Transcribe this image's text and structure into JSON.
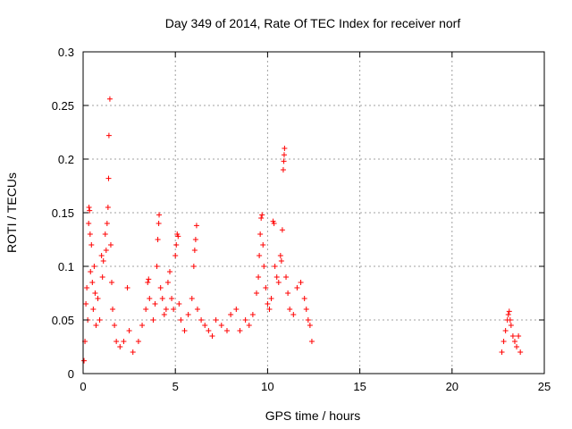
{
  "chart_data": {
    "type": "scatter",
    "title": "Day 349 of 2014, Rate Of TEC Index for receiver norf",
    "xlabel": "GPS time / hours",
    "ylabel": "ROTI / TECUs",
    "xlim": [
      0,
      25
    ],
    "ylim": [
      0,
      0.3
    ],
    "xticks": [
      0,
      5,
      10,
      15,
      20,
      25
    ],
    "xtick_labels": [
      "0",
      "5",
      "10",
      "15",
      "20",
      "25"
    ],
    "yticks": [
      0,
      0.05,
      0.1,
      0.15,
      0.2,
      0.25,
      0.3
    ],
    "ytick_labels": [
      "0",
      "0.05",
      "0.1",
      "0.15",
      "0.2",
      "0.25",
      "0.3"
    ],
    "grid": true,
    "marker": "+",
    "color": "#ff0000",
    "series": [
      {
        "name": "ROTI",
        "points": [
          [
            0.05,
            0.012
          ],
          [
            0.1,
            0.03
          ],
          [
            0.15,
            0.065
          ],
          [
            0.2,
            0.08
          ],
          [
            0.25,
            0.05
          ],
          [
            0.3,
            0.14
          ],
          [
            0.32,
            0.155
          ],
          [
            0.35,
            0.152
          ],
          [
            0.38,
            0.13
          ],
          [
            0.4,
            0.095
          ],
          [
            0.45,
            0.12
          ],
          [
            0.5,
            0.085
          ],
          [
            0.55,
            0.06
          ],
          [
            0.6,
            0.1
          ],
          [
            0.65,
            0.075
          ],
          [
            0.7,
            0.045
          ],
          [
            0.8,
            0.07
          ],
          [
            0.9,
            0.05
          ],
          [
            1.0,
            0.11
          ],
          [
            1.05,
            0.09
          ],
          [
            1.1,
            0.105
          ],
          [
            1.2,
            0.13
          ],
          [
            1.25,
            0.115
          ],
          [
            1.3,
            0.14
          ],
          [
            1.35,
            0.155
          ],
          [
            1.38,
            0.182
          ],
          [
            1.4,
            0.222
          ],
          [
            1.45,
            0.256
          ],
          [
            1.5,
            0.12
          ],
          [
            1.55,
            0.085
          ],
          [
            1.6,
            0.06
          ],
          [
            1.7,
            0.045
          ],
          [
            1.8,
            0.03
          ],
          [
            2.0,
            0.025
          ],
          [
            2.2,
            0.03
          ],
          [
            2.4,
            0.08
          ],
          [
            2.5,
            0.04
          ],
          [
            2.7,
            0.02
          ],
          [
            3.0,
            0.03
          ],
          [
            3.2,
            0.045
          ],
          [
            3.4,
            0.06
          ],
          [
            3.5,
            0.085
          ],
          [
            3.55,
            0.088
          ],
          [
            3.6,
            0.07
          ],
          [
            3.8,
            0.05
          ],
          [
            3.9,
            0.065
          ],
          [
            4.0,
            0.1
          ],
          [
            4.05,
            0.125
          ],
          [
            4.1,
            0.14
          ],
          [
            4.12,
            0.148
          ],
          [
            4.2,
            0.08
          ],
          [
            4.3,
            0.07
          ],
          [
            4.4,
            0.055
          ],
          [
            4.5,
            0.06
          ],
          [
            4.6,
            0.085
          ],
          [
            4.7,
            0.095
          ],
          [
            4.8,
            0.07
          ],
          [
            4.9,
            0.06
          ],
          [
            5.0,
            0.11
          ],
          [
            5.05,
            0.12
          ],
          [
            5.1,
            0.13
          ],
          [
            5.15,
            0.128
          ],
          [
            5.2,
            0.065
          ],
          [
            5.3,
            0.05
          ],
          [
            5.5,
            0.04
          ],
          [
            5.7,
            0.055
          ],
          [
            5.9,
            0.07
          ],
          [
            6.0,
            0.1
          ],
          [
            6.05,
            0.115
          ],
          [
            6.1,
            0.125
          ],
          [
            6.15,
            0.138
          ],
          [
            6.2,
            0.06
          ],
          [
            6.4,
            0.05
          ],
          [
            6.6,
            0.045
          ],
          [
            6.8,
            0.04
          ],
          [
            7.0,
            0.035
          ],
          [
            7.2,
            0.05
          ],
          [
            7.5,
            0.045
          ],
          [
            7.8,
            0.04
          ],
          [
            8.0,
            0.055
          ],
          [
            8.3,
            0.06
          ],
          [
            8.5,
            0.04
          ],
          [
            8.8,
            0.05
          ],
          [
            9.0,
            0.045
          ],
          [
            9.2,
            0.055
          ],
          [
            9.4,
            0.075
          ],
          [
            9.5,
            0.09
          ],
          [
            9.55,
            0.11
          ],
          [
            9.6,
            0.13
          ],
          [
            9.65,
            0.145
          ],
          [
            9.7,
            0.148
          ],
          [
            9.75,
            0.12
          ],
          [
            9.8,
            0.1
          ],
          [
            9.9,
            0.08
          ],
          [
            10.0,
            0.065
          ],
          [
            10.1,
            0.06
          ],
          [
            10.2,
            0.07
          ],
          [
            10.3,
            0.142
          ],
          [
            10.35,
            0.14
          ],
          [
            10.4,
            0.1
          ],
          [
            10.5,
            0.09
          ],
          [
            10.6,
            0.085
          ],
          [
            10.7,
            0.11
          ],
          [
            10.75,
            0.105
          ],
          [
            10.8,
            0.134
          ],
          [
            10.85,
            0.19
          ],
          [
            10.88,
            0.198
          ],
          [
            10.9,
            0.204
          ],
          [
            10.92,
            0.21
          ],
          [
            11.0,
            0.09
          ],
          [
            11.1,
            0.075
          ],
          [
            11.2,
            0.06
          ],
          [
            11.4,
            0.055
          ],
          [
            11.6,
            0.08
          ],
          [
            11.8,
            0.085
          ],
          [
            12.0,
            0.07
          ],
          [
            12.1,
            0.06
          ],
          [
            12.2,
            0.05
          ],
          [
            12.3,
            0.045
          ],
          [
            12.4,
            0.03
          ],
          [
            22.7,
            0.02
          ],
          [
            22.8,
            0.03
          ],
          [
            22.9,
            0.04
          ],
          [
            23.0,
            0.05
          ],
          [
            23.05,
            0.055
          ],
          [
            23.1,
            0.058
          ],
          [
            23.15,
            0.05
          ],
          [
            23.2,
            0.045
          ],
          [
            23.3,
            0.035
          ],
          [
            23.4,
            0.03
          ],
          [
            23.5,
            0.025
          ],
          [
            23.6,
            0.035
          ],
          [
            23.7,
            0.02
          ]
        ]
      }
    ]
  }
}
